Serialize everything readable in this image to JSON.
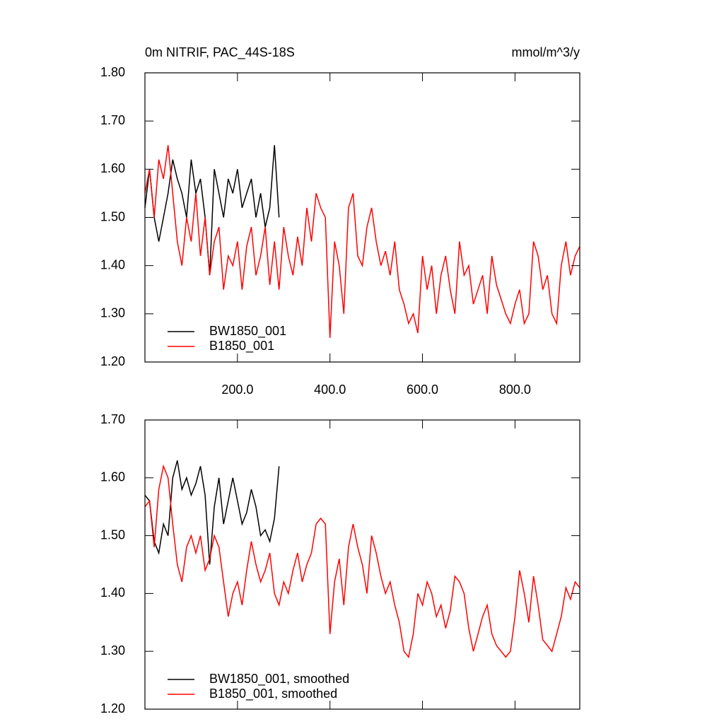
{
  "chart_data": [
    {
      "type": "line",
      "title": "0m NITRIF, PAC_44S-18S",
      "subtitle": "mmol/m^3/y",
      "xlim": [
        0,
        940
      ],
      "ylim": [
        1.2,
        1.8
      ],
      "xticks": [
        {
          "value": 200,
          "label": "200.0"
        },
        {
          "value": 400,
          "label": "400.0"
        },
        {
          "value": 600,
          "label": "600.0"
        },
        {
          "value": 800,
          "label": "800.0"
        }
      ],
      "yticks": [
        {
          "value": 1.2,
          "label": "1.20"
        },
        {
          "value": 1.3,
          "label": "1.30"
        },
        {
          "value": 1.4,
          "label": "1.40"
        },
        {
          "value": 1.5,
          "label": "1.50"
        },
        {
          "value": 1.6,
          "label": "1.60"
        },
        {
          "value": 1.7,
          "label": "1.70"
        },
        {
          "value": 1.8,
          "label": "1.80"
        }
      ],
      "x": [
        0,
        10,
        20,
        30,
        40,
        50,
        60,
        70,
        80,
        90,
        100,
        110,
        120,
        130,
        140,
        150,
        160,
        170,
        180,
        190,
        200,
        210,
        220,
        230,
        240,
        250,
        260,
        270,
        280,
        290,
        300,
        310,
        320,
        330,
        340,
        350,
        360,
        370,
        380,
        390,
        400,
        410,
        420,
        430,
        440,
        450,
        460,
        470,
        480,
        490,
        500,
        510,
        520,
        530,
        540,
        550,
        560,
        570,
        580,
        590,
        600,
        610,
        620,
        630,
        640,
        650,
        660,
        670,
        680,
        690,
        700,
        710,
        720,
        730,
        740,
        750,
        760,
        770,
        780,
        790,
        800,
        810,
        820,
        830,
        840,
        850,
        860,
        870,
        880,
        890,
        900,
        910,
        920,
        930,
        940
      ],
      "series": [
        {
          "name": "BW1850_001",
          "color": "#000000",
          "values": [
            1.52,
            1.6,
            1.5,
            1.45,
            1.5,
            1.55,
            1.62,
            1.58,
            1.55,
            1.5,
            1.62,
            1.55,
            1.58,
            1.5,
            1.38,
            1.6,
            1.55,
            1.5,
            1.58,
            1.55,
            1.6,
            1.52,
            1.55,
            1.58,
            1.5,
            1.55,
            1.48,
            1.52,
            1.65,
            1.5,
            null,
            null,
            null,
            null,
            null,
            null,
            null,
            null,
            null,
            null,
            null,
            null,
            null,
            null,
            null,
            null,
            null,
            null,
            null,
            null,
            null,
            null,
            null,
            null,
            null,
            null,
            null,
            null,
            null,
            null,
            null,
            null,
            null,
            null,
            null,
            null,
            null,
            null,
            null,
            null,
            null,
            null,
            null,
            null,
            null,
            null,
            null,
            null,
            null,
            null,
            null,
            null,
            null,
            null,
            null,
            null,
            null,
            null,
            null,
            null,
            null,
            null,
            null,
            null,
            null
          ]
        },
        {
          "name": "B1850_001",
          "color": "#ff0000",
          "values": [
            1.55,
            1.6,
            1.5,
            1.62,
            1.58,
            1.65,
            1.55,
            1.45,
            1.4,
            1.5,
            1.45,
            1.55,
            1.42,
            1.5,
            1.38,
            1.45,
            1.48,
            1.35,
            1.42,
            1.4,
            1.45,
            1.35,
            1.44,
            1.48,
            1.38,
            1.42,
            1.48,
            1.36,
            1.45,
            1.35,
            1.48,
            1.42,
            1.38,
            1.46,
            1.4,
            1.52,
            1.45,
            1.55,
            1.52,
            1.5,
            1.25,
            1.45,
            1.4,
            1.3,
            1.52,
            1.55,
            1.42,
            1.4,
            1.48,
            1.52,
            1.45,
            1.4,
            1.43,
            1.38,
            1.45,
            1.35,
            1.32,
            1.28,
            1.3,
            1.26,
            1.42,
            1.35,
            1.4,
            1.3,
            1.38,
            1.42,
            1.35,
            1.3,
            1.45,
            1.38,
            1.4,
            1.32,
            1.35,
            1.38,
            1.3,
            1.42,
            1.36,
            1.33,
            1.3,
            1.28,
            1.32,
            1.35,
            1.28,
            1.3,
            1.45,
            1.42,
            1.35,
            1.38,
            1.3,
            1.28,
            1.4,
            1.45,
            1.38,
            1.42,
            1.44
          ]
        }
      ]
    },
    {
      "type": "line",
      "xlim": [
        0,
        940
      ],
      "ylim": [
        1.2,
        1.7
      ],
      "xticks": [
        200,
        400,
        600,
        800
      ],
      "show_xtick_labels": false,
      "yticks": [
        {
          "value": 1.2,
          "label": "1.20"
        },
        {
          "value": 1.3,
          "label": "1.30"
        },
        {
          "value": 1.4,
          "label": "1.40"
        },
        {
          "value": 1.5,
          "label": "1.50"
        },
        {
          "value": 1.6,
          "label": "1.60"
        },
        {
          "value": 1.7,
          "label": "1.70"
        }
      ],
      "x": [
        0,
        10,
        20,
        30,
        40,
        50,
        60,
        70,
        80,
        90,
        100,
        110,
        120,
        130,
        140,
        150,
        160,
        170,
        180,
        190,
        200,
        210,
        220,
        230,
        240,
        250,
        260,
        270,
        280,
        290,
        300,
        310,
        320,
        330,
        340,
        350,
        360,
        370,
        380,
        390,
        400,
        410,
        420,
        430,
        440,
        450,
        460,
        470,
        480,
        490,
        500,
        510,
        520,
        530,
        540,
        550,
        560,
        570,
        580,
        590,
        600,
        610,
        620,
        630,
        640,
        650,
        660,
        670,
        680,
        690,
        700,
        710,
        720,
        730,
        740,
        750,
        760,
        770,
        780,
        790,
        800,
        810,
        820,
        830,
        840,
        850,
        860,
        870,
        880,
        890,
        900,
        910,
        920,
        930,
        940
      ],
      "series": [
        {
          "name": "BW1850_001, smoothed",
          "color": "#000000",
          "values": [
            1.57,
            1.56,
            1.49,
            1.47,
            1.52,
            1.5,
            1.6,
            1.63,
            1.58,
            1.6,
            1.57,
            1.59,
            1.62,
            1.57,
            1.45,
            1.55,
            1.6,
            1.52,
            1.56,
            1.6,
            1.56,
            1.52,
            1.54,
            1.58,
            1.55,
            1.5,
            1.51,
            1.49,
            1.53,
            1.62,
            null,
            null,
            null,
            null,
            null,
            null,
            null,
            null,
            null,
            null,
            null,
            null,
            null,
            null,
            null,
            null,
            null,
            null,
            null,
            null,
            null,
            null,
            null,
            null,
            null,
            null,
            null,
            null,
            null,
            null,
            null,
            null,
            null,
            null,
            null,
            null,
            null,
            null,
            null,
            null,
            null,
            null,
            null,
            null,
            null,
            null,
            null,
            null,
            null,
            null,
            null,
            null,
            null,
            null,
            null,
            null,
            null,
            null,
            null,
            null,
            null,
            null,
            null,
            null,
            null
          ]
        },
        {
          "name": "B1850_001, smoothed",
          "color": "#ff0000",
          "values": [
            1.55,
            1.56,
            1.48,
            1.58,
            1.62,
            1.6,
            1.52,
            1.45,
            1.42,
            1.48,
            1.5,
            1.47,
            1.5,
            1.44,
            1.46,
            1.5,
            1.48,
            1.42,
            1.36,
            1.4,
            1.42,
            1.38,
            1.44,
            1.49,
            1.45,
            1.42,
            1.44,
            1.47,
            1.4,
            1.38,
            1.42,
            1.4,
            1.44,
            1.47,
            1.42,
            1.45,
            1.47,
            1.52,
            1.53,
            1.52,
            1.33,
            1.42,
            1.46,
            1.38,
            1.48,
            1.52,
            1.48,
            1.45,
            1.4,
            1.5,
            1.47,
            1.43,
            1.4,
            1.42,
            1.38,
            1.35,
            1.3,
            1.29,
            1.33,
            1.4,
            1.38,
            1.42,
            1.4,
            1.36,
            1.38,
            1.34,
            1.37,
            1.43,
            1.42,
            1.4,
            1.34,
            1.3,
            1.33,
            1.36,
            1.38,
            1.33,
            1.31,
            1.3,
            1.29,
            1.3,
            1.36,
            1.44,
            1.4,
            1.35,
            1.43,
            1.38,
            1.32,
            1.31,
            1.3,
            1.33,
            1.36,
            1.41,
            1.39,
            1.42,
            1.41
          ]
        }
      ]
    }
  ]
}
